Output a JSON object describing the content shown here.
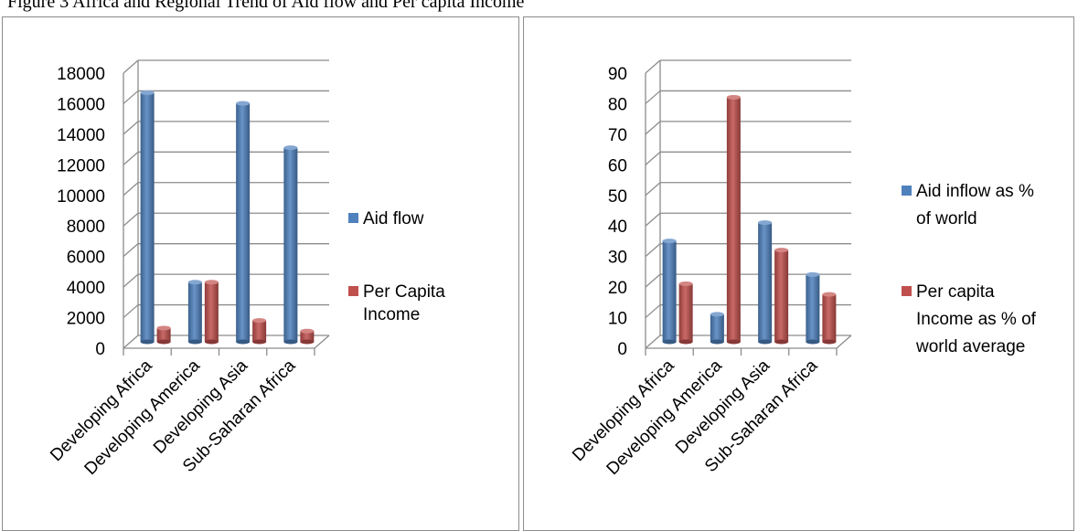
{
  "caption": "Figure 3 Africa and Regional Trend of Aid flow and Per capita Income",
  "colors": {
    "blue": "#4f81bd",
    "red": "#c0504d"
  },
  "chart_data": [
    {
      "type": "bar",
      "title": "",
      "categories": [
        "Developing Africa",
        "Developing America",
        "Developing Asia",
        "Sub-Saharan Africa"
      ],
      "series": [
        {
          "name": "Aid flow",
          "values": [
            16300,
            3900,
            15600,
            12700
          ]
        },
        {
          "name": "Per Capita Income",
          "values": [
            900,
            3900,
            1400,
            700
          ]
        }
      ],
      "ylim": [
        0,
        18000
      ],
      "yticks": [
        "0",
        "2000",
        "4000",
        "6000",
        "8000",
        "10000",
        "12000",
        "14000",
        "16000",
        "18000"
      ],
      "grid": true,
      "legend": "right",
      "legend_lines": [
        [
          "Aid flow"
        ],
        [
          "Per Capita",
          "Income"
        ]
      ]
    },
    {
      "type": "bar",
      "title": "",
      "categories": [
        "Developing Africa",
        "Developing America",
        "Developing Asia",
        "Sub-Saharan Africa"
      ],
      "series": [
        {
          "name": "Aid inflow as % of world",
          "values": [
            33,
            9,
            39,
            22
          ]
        },
        {
          "name": "Per capita Income as % of world average",
          "values": [
            19,
            80,
            30,
            15.5
          ]
        }
      ],
      "ylim": [
        0,
        90
      ],
      "yticks": [
        "0",
        "10",
        "20",
        "30",
        "40",
        "50",
        "60",
        "70",
        "80",
        "90"
      ],
      "grid": true,
      "legend": "right",
      "legend_lines": [
        [
          "Aid inflow as %",
          "of world"
        ],
        [
          "Per capita",
          "Income as % of",
          "world average"
        ]
      ]
    }
  ]
}
